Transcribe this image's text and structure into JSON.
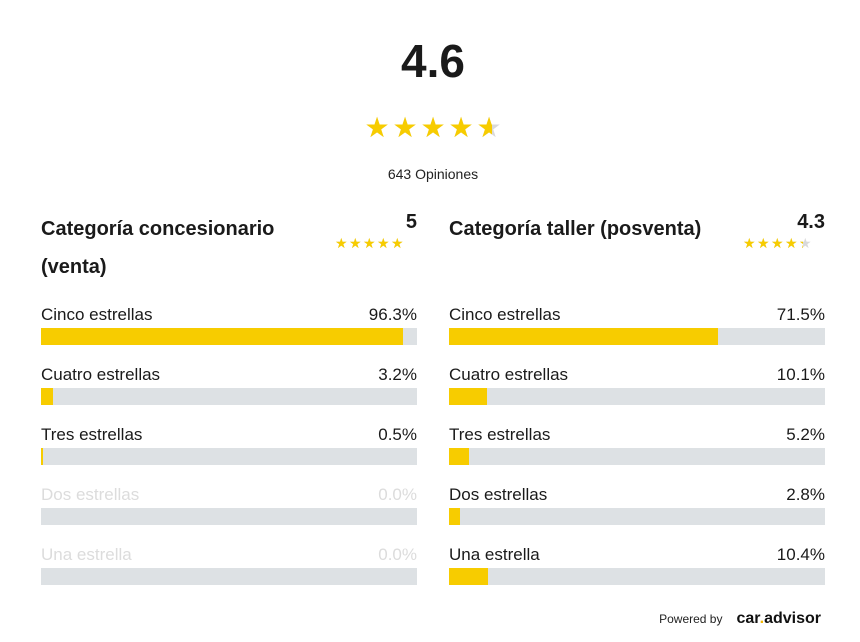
{
  "overall": {
    "score": "4.6",
    "rating": 4.6,
    "reviews": "643 Opiniones"
  },
  "categories": [
    {
      "title": "Categoría concesionario (venta)",
      "score": "5",
      "rating": 5,
      "rows": [
        {
          "label": "Cinco estrellas",
          "percent": "96.3%",
          "value": 96.3
        },
        {
          "label": "Cuatro estrellas",
          "percent": "3.2%",
          "value": 3.2
        },
        {
          "label": "Tres estrellas",
          "percent": "0.5%",
          "value": 0.5
        },
        {
          "label": "Dos estrellas",
          "percent": "0.0%",
          "value": 0.0
        },
        {
          "label": "Una estrella",
          "percent": "0.0%",
          "value": 0.0
        }
      ]
    },
    {
      "title": "Categoría taller (posventa)",
      "score": "4.3",
      "rating": 4.3,
      "rows": [
        {
          "label": "Cinco estrellas",
          "percent": "71.5%",
          "value": 71.5
        },
        {
          "label": "Cuatro estrellas",
          "percent": "10.1%",
          "value": 10.1
        },
        {
          "label": "Tres estrellas",
          "percent": "5.2%",
          "value": 5.2
        },
        {
          "label": "Dos estrellas",
          "percent": "2.8%",
          "value": 2.8
        },
        {
          "label": "Una estrella",
          "percent": "10.4%",
          "value": 10.4
        }
      ]
    }
  ],
  "footer": {
    "powered_by": "Powered by",
    "logo_prefix": "car",
    "logo_dot": ".",
    "logo_suffix": "advisor"
  },
  "colors": {
    "star": "#f7cc00",
    "star_empty": "#d9d9d9",
    "bar_fill": "#f7cc00",
    "bar_track": "#dde1e4"
  },
  "icons": {
    "star": "star-icon"
  }
}
